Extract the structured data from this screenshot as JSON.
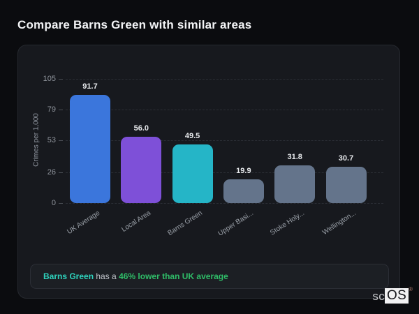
{
  "page": {
    "title": "Compare Barns Green with similar areas"
  },
  "chart_data": {
    "type": "bar",
    "title": "Compare Barns Green with similar areas",
    "categories": [
      "UK Average",
      "Local Area",
      "Barns Green",
      "Upper Basi...",
      "Stoke Holy...",
      "Wellington..."
    ],
    "values": [
      91.7,
      56.0,
      49.5,
      19.9,
      31.8,
      30.7
    ],
    "value_labels": [
      "91.7",
      "56.0",
      "49.5",
      "19.9",
      "31.8",
      "30.7"
    ],
    "bar_colors": [
      "#3b76dc",
      "#7e50d8",
      "#25b5c7",
      "#64748b",
      "#64748b",
      "#64748b"
    ],
    "xlabel": "",
    "ylabel": "Crimes per 1,000",
    "yticks": [
      0,
      26,
      53,
      79,
      105
    ],
    "ylim": [
      0,
      105
    ],
    "grid": "horizontal-dashed",
    "legend": "none"
  },
  "note": {
    "subject": "Barns Green",
    "middle": " has a ",
    "highlight": "46% lower than UK average"
  },
  "logo": {
    "prefix": "sc",
    "suffix": "OS",
    "registered": "®"
  },
  "colors": {
    "background": "#0b0c0f",
    "panel": "#17191e",
    "panel_border": "#26292f",
    "grid": "#2b2e35",
    "tick_text": "#8f949c",
    "value_text": "#e8eaed",
    "note_subject": "#2ed3bd",
    "note_highlight": "#2fbd68"
  }
}
